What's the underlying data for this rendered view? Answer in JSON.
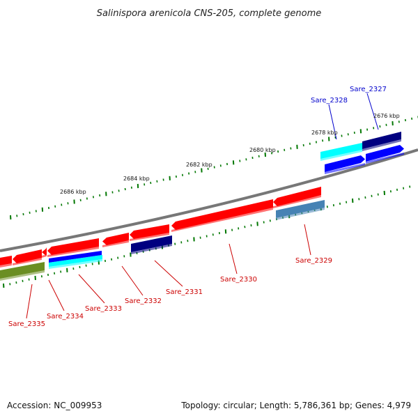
{
  "title": "Salinispora arenicola CNS-205, complete genome",
  "footer": {
    "accession": "Accession: NC_009953",
    "stats": "Topology: circular; Length: 5,786,361 bp; Genes: 4,979"
  },
  "scale_labels": [
    "2676 kbp",
    "2678 kbp",
    "2680 kbp",
    "2682 kbp",
    "2684 kbp",
    "2686 kbp"
  ],
  "genes_top": [
    "Sare_2327",
    "Sare_2328"
  ],
  "genes_bottom": [
    "Sare_2329",
    "Sare_2330",
    "Sare_2331",
    "Sare_2332",
    "Sare_2333",
    "Sare_2334",
    "Sare_2335"
  ],
  "colors": {
    "backbone": "#777777",
    "red_feature": "#ff0000",
    "navy_feature": "#000080",
    "blue_feature": "#0000ff",
    "cyan_feature": "#00ffff",
    "olive_feature": "#6b8e23",
    "steel_feature": "#4682b4",
    "tick": "#007700",
    "top_label": "#0000cc",
    "bottom_label": "#cc0000"
  }
}
